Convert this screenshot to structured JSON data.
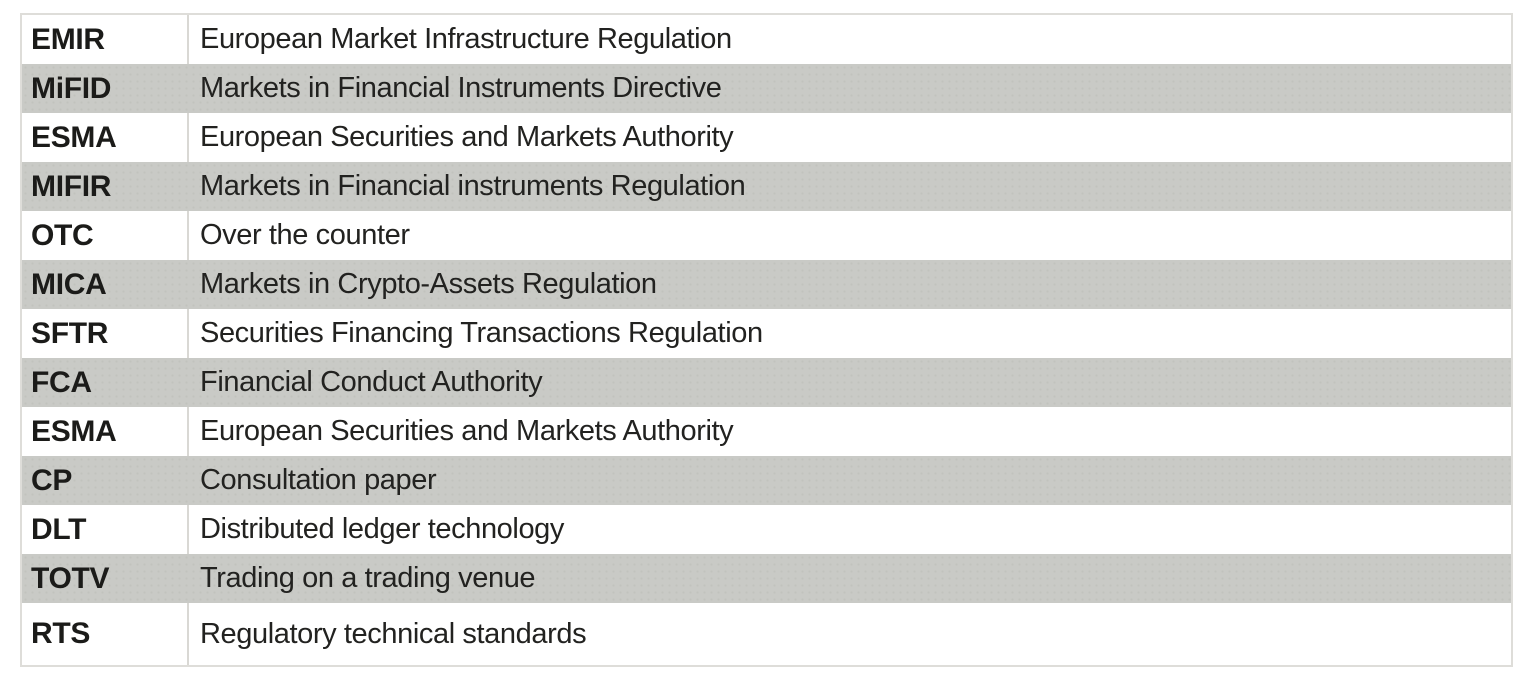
{
  "table": {
    "name": "abbreviations-table",
    "columns": [
      "abbreviation",
      "definition"
    ],
    "rows": [
      {
        "abbr": "EMIR",
        "definition": "European Market Infrastructure Regulation"
      },
      {
        "abbr": "MiFID",
        "definition": "Markets in Financial Instruments Directive"
      },
      {
        "abbr": "ESMA",
        "definition": "European Securities and Markets Authority"
      },
      {
        "abbr": "MIFIR",
        "definition": "Markets in Financial instruments Regulation"
      },
      {
        "abbr": "OTC",
        "definition": "Over the counter"
      },
      {
        "abbr": "MICA",
        "definition": "Markets in Crypto-Assets Regulation"
      },
      {
        "abbr": "SFTR",
        "definition": "Securities Financing Transactions Regulation"
      },
      {
        "abbr": "FCA",
        "definition": "Financial Conduct Authority"
      },
      {
        "abbr": "ESMA",
        "definition": "European Securities and Markets Authority"
      },
      {
        "abbr": "CP",
        "definition": "Consultation paper"
      },
      {
        "abbr": "DLT",
        "definition": "Distributed ledger technology"
      },
      {
        "abbr": "TOTV",
        "definition": "Trading on a trading venue"
      },
      {
        "abbr": "RTS",
        "definition": "Regulatory technical standards"
      }
    ]
  },
  "colors": {
    "row_bg": "#ffffff",
    "row_alt_bg": "#c9cac6",
    "table_border": "#deddd9",
    "column_divider": "#d9d8d4",
    "text": "#1d1d1b"
  }
}
